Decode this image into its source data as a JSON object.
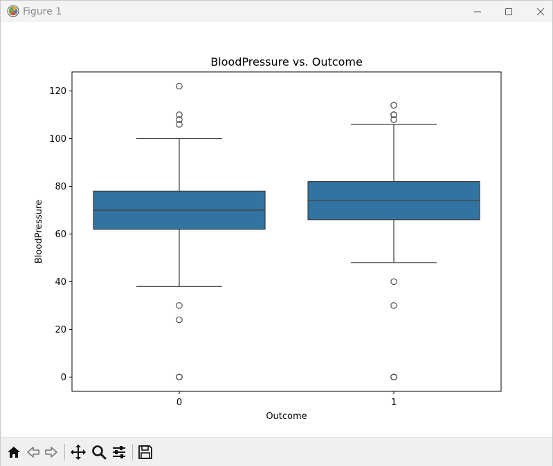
{
  "window": {
    "title": "Figure 1"
  },
  "toolbar": {
    "tools": [
      "home-icon",
      "back-icon",
      "forward-icon",
      "pan-icon",
      "zoom-icon",
      "configure-subplots-icon",
      "save-icon"
    ]
  },
  "colors": {
    "box_fill": "#3274a1",
    "box_edge": "#3d3d3d",
    "toolbar_bg": "#f0f0f0"
  },
  "chart_data": {
    "type": "box",
    "title": "BloodPressure vs. Outcome",
    "xlabel": "Outcome",
    "ylabel": "BloodPressure",
    "categories": [
      "0",
      "1"
    ],
    "ylim": [
      -6,
      128
    ],
    "yticks": [
      0,
      20,
      40,
      60,
      80,
      100,
      120
    ],
    "grid": false,
    "boxes": [
      {
        "category": "0",
        "whisker_low": 38,
        "q1": 62,
        "median": 70,
        "q3": 78,
        "whisker_high": 100,
        "outliers": [
          122,
          110,
          108,
          106,
          30,
          24,
          0,
          0,
          0
        ]
      },
      {
        "category": "1",
        "whisker_low": 48,
        "q1": 66,
        "median": 74,
        "q3": 82,
        "whisker_high": 106,
        "outliers": [
          114,
          110,
          110,
          108,
          40,
          30,
          0,
          0,
          0
        ]
      }
    ]
  }
}
